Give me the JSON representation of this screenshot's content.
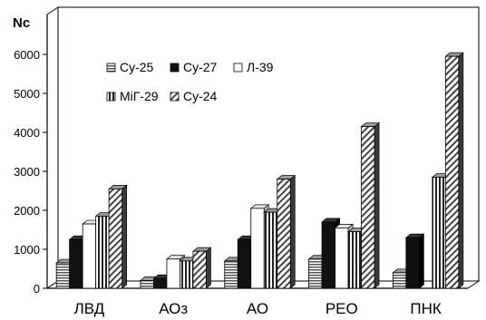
{
  "chart_data": {
    "type": "bar",
    "title": "",
    "ylabel": "Nc",
    "xlabel": "",
    "ylim": [
      0,
      6000
    ],
    "yticks": [
      0,
      1000,
      2000,
      3000,
      4000,
      5000,
      6000
    ],
    "grid": "horizontal dashed",
    "legend_position": "upper-left, inside plot",
    "categories": [
      "ЛВД",
      "АОз",
      "АО",
      "РЕО",
      "ПНК"
    ],
    "series": [
      {
        "name": "Су-25",
        "pattern": "horizontal-stripes",
        "color": "#808080",
        "values": [
          650,
          200,
          700,
          750,
          400
        ]
      },
      {
        "name": "Су-27",
        "pattern": "solid",
        "color": "#111111",
        "values": [
          1250,
          250,
          1250,
          1700,
          1300
        ]
      },
      {
        "name": "Л-39",
        "pattern": "solid",
        "color": "#ffffff",
        "values": [
          1650,
          750,
          2050,
          1550,
          0
        ]
      },
      {
        "name": "МіГ-29",
        "pattern": "vertical-stripes",
        "color": "#808080",
        "values": [
          1850,
          700,
          1950,
          1450,
          2850
        ]
      },
      {
        "name": "Су-24",
        "pattern": "diagonal-hatch",
        "color": "#808080",
        "values": [
          2550,
          950,
          2800,
          4150,
          5950
        ]
      }
    ]
  }
}
